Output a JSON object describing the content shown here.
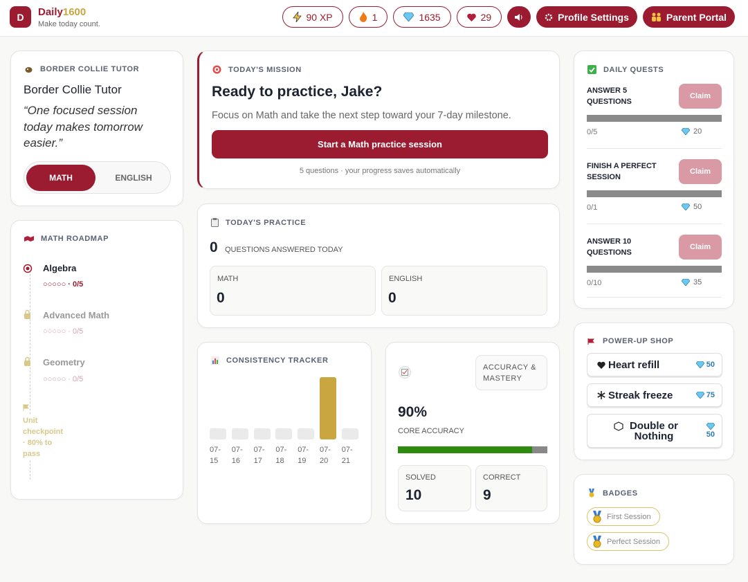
{
  "header": {
    "logo": "D",
    "brand": "Daily",
    "brand_accent": "1600",
    "tagline": "Make today count.",
    "stats": {
      "xp": "90 XP",
      "streak": "1",
      "gems": "1635",
      "hearts": "29"
    },
    "buttons": [
      "Profile Settings",
      "Parent Portal"
    ]
  },
  "tutor": {
    "heading": "BORDER COLLIE TUTOR",
    "name": "Border Collie Tutor",
    "quote": "“One focused session today makes tomorrow easier.”",
    "subjects": [
      "MATH",
      "ENGLISH"
    ]
  },
  "roadmap": {
    "heading": "MATH ROADMAP",
    "units": [
      {
        "name": "Algebra",
        "progress": "○○○○○ · 0/5"
      },
      {
        "name": "Advanced Math",
        "progress": "○○○○○ · 0/5"
      },
      {
        "name": "Geometry",
        "progress": "○○○○○ · 0/5"
      }
    ],
    "checkpoint": "Unit checkpoint · 80% to pass"
  },
  "mission": {
    "heading": "TODAY'S MISSION",
    "title": "Ready to practice, Jake?",
    "text": "Focus on Math and take the next step toward your 7-day milestone.",
    "button": "Start a Math practice session",
    "note": "5 questions · your progress saves automatically"
  },
  "practice": {
    "heading": "TODAY'S PRACTICE",
    "count": 0,
    "count_label": "QUESTIONS ANSWERED TODAY",
    "subjects": [
      {
        "name": "MATH",
        "value": 0
      },
      {
        "name": "ENGLISH",
        "value": 0
      }
    ]
  },
  "consistency": {
    "heading": "CONSISTENCY TRACKER",
    "dates": [
      "07-15",
      "07-16",
      "07-17",
      "07-18",
      "07-19",
      "07-20",
      "07-21"
    ],
    "values": [
      0,
      0,
      0,
      0,
      0,
      10,
      0
    ]
  },
  "accuracy": {
    "heading": "ACCURACY & MASTERY",
    "value": {
      "value": 90,
      "label": "90%"
    },
    "label": "CORE ACCURACY",
    "stats": [
      {
        "name": "SOLVED",
        "value": 10
      },
      {
        "name": "CORRECT",
        "value": 9
      }
    ]
  },
  "quests": {
    "heading": "DAILY QUESTS",
    "items": [
      {
        "name": "ANSWER 5 QUESTIONS",
        "progress": "0/5",
        "reward": 20,
        "button": "Claim"
      },
      {
        "name": "FINISH A PERFECT SESSION",
        "progress": "0/1",
        "reward": 50,
        "button": "Claim"
      },
      {
        "name": "ANSWER 10 QUESTIONS",
        "progress": "0/10",
        "reward": 35,
        "button": "Claim"
      }
    ]
  },
  "shop": {
    "heading": "POWER-UP SHOP",
    "items": [
      {
        "name": "Heart refill",
        "price": 50
      },
      {
        "name": "Streak freeze",
        "price": 75
      },
      {
        "name": "Double or Nothing",
        "price": 50
      }
    ]
  },
  "badges": {
    "heading": "BADGES",
    "items": [
      "First Session",
      "Perfect Session"
    ]
  }
}
